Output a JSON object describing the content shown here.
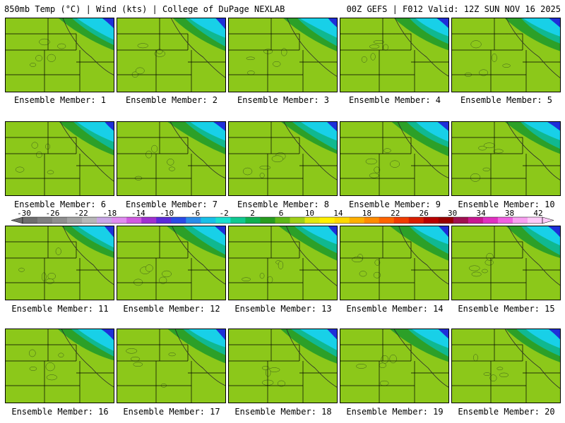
{
  "header": {
    "title": "850mb Temp (°C) | Wind (kts) | College of DuPage NEXLAB",
    "run": "00Z GEFS | F012 Valid: 12Z SUN NOV 16 2025"
  },
  "members": [
    "Ensemble Member: 1",
    "Ensemble Member: 2",
    "Ensemble Member: 3",
    "Ensemble Member: 4",
    "Ensemble Member: 5",
    "Ensemble Member: 6",
    "Ensemble Member: 7",
    "Ensemble Member: 8",
    "Ensemble Member: 9",
    "Ensemble Member: 10",
    "Ensemble Member: 11",
    "Ensemble Member: 12",
    "Ensemble Member: 13",
    "Ensemble Member: 14",
    "Ensemble Member: 15",
    "Ensemble Member: 16",
    "Ensemble Member: 17",
    "Ensemble Member: 18",
    "Ensemble Member: 19",
    "Ensemble Member: 20"
  ],
  "colorbar": {
    "labels": [
      "-30",
      "-26",
      "-22",
      "-18",
      "-14",
      "-10",
      "-6",
      "-2",
      "2",
      "6",
      "10",
      "14",
      "18",
      "22",
      "26",
      "30",
      "34",
      "38",
      "42"
    ],
    "colors": [
      "#6e6e6e",
      "#7f7f7f",
      "#8f8f8f",
      "#a3a3a3",
      "#b7b7b7",
      "#c9a6e6",
      "#e08cf0",
      "#d05ae0",
      "#a030d0",
      "#5a2ad8",
      "#2a4ae6",
      "#2a8ce8",
      "#18c0e8",
      "#18e0d0",
      "#10c890",
      "#10b050",
      "#289c20",
      "#60b818",
      "#a0d018",
      "#e0e810",
      "#fff000",
      "#ffd800",
      "#ffb000",
      "#ff8c00",
      "#ff6400",
      "#f03c00",
      "#d81e00",
      "#b80000",
      "#980000",
      "#a01050",
      "#c81890",
      "#e030c0",
      "#f060e0",
      "#f8a0f0",
      "#fccaf8"
    ]
  },
  "map_colors": {
    "cold_blue": "#1e2fd8",
    "cyan": "#18d0e8",
    "teal": "#10b890",
    "green": "#2ca028",
    "light_green": "#8cc81a",
    "yellow_green": "#c8dc10",
    "yellow": "#f8f000",
    "orange": "#ffb000",
    "dark_orange": "#ff8000"
  }
}
